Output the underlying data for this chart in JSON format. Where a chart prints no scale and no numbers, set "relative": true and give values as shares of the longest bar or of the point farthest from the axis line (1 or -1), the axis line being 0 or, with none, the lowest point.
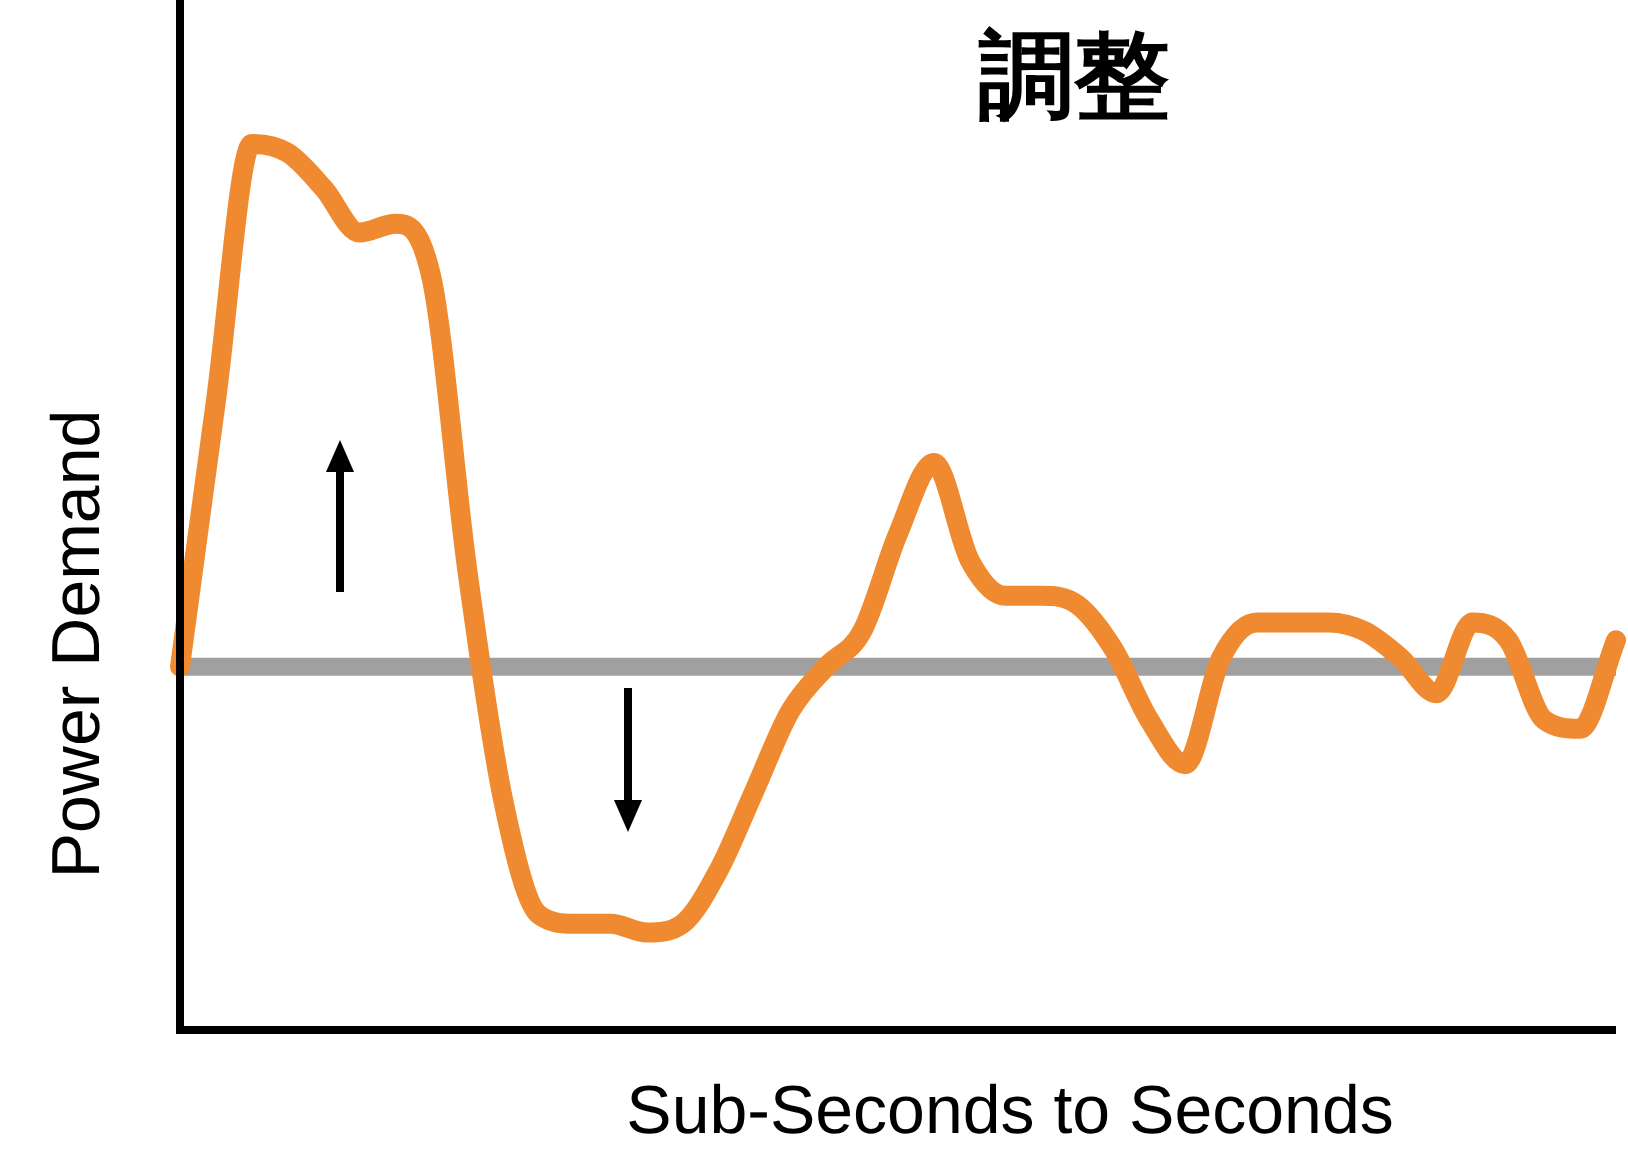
{
  "chart_data": {
    "type": "line",
    "title": "調整",
    "xlabel": "Sub-Seconds to Seconds",
    "ylabel": "Power Demand",
    "relative": true,
    "categories": [
      null,
      null,
      null,
      null,
      null,
      null,
      null,
      null,
      null,
      null,
      null,
      null,
      null,
      null,
      null,
      null,
      null,
      null,
      null,
      null,
      null,
      null,
      null,
      null,
      null,
      null,
      null,
      null,
      null,
      null,
      null,
      null,
      null,
      null,
      null,
      null,
      null,
      null,
      null,
      null,
      null
    ],
    "series": [
      {
        "color": "#f08a30",
        "values": [
          0.41,
          0.71,
          1,
          0.99,
          0.95,
          0.9,
          0.91,
          0.85,
          0.52,
          0.26,
          0.13,
          0.12,
          0.12,
          0.11,
          0.12,
          0.18,
          0.27,
          0.36,
          0.41,
          0.45,
          0.56,
          0.64,
          0.53,
          0.49,
          0.49,
          0.48,
          0.43,
          0.35,
          0.3,
          0.42,
          0.46,
          0.46,
          0.46,
          0.45,
          0.42,
          0.38,
          0.46,
          0.44,
          0.35,
          0.34,
          0.44
        ]
      }
    ],
    "ref_lines": [
      {
        "axis": "y",
        "value": 0.41,
        "color": "#a0a0a0"
      }
    ]
  }
}
